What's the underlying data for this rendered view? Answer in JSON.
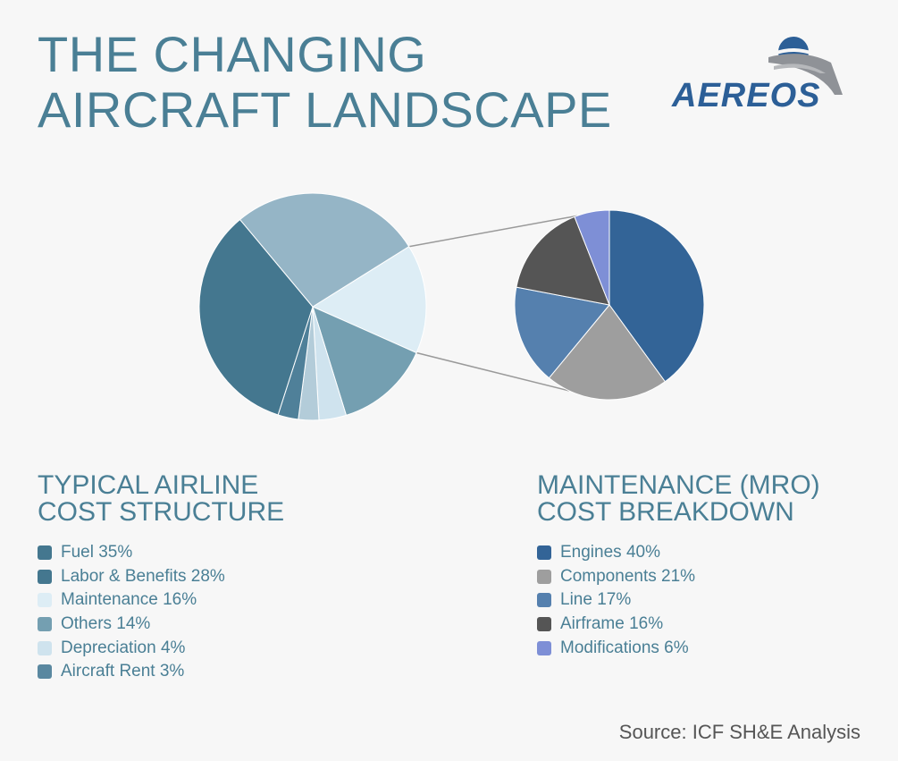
{
  "title": {
    "line1": "THE CHANGING",
    "line2": "AIRCRAFT LANDSCAPE"
  },
  "logo": {
    "text": "AEREOS"
  },
  "left_section": {
    "title_line1": "TYPICAL AIRLINE",
    "title_line2": "COST STRUCTURE"
  },
  "right_section": {
    "title_line1": "MAINTENANCE (MRO)",
    "title_line2": "COST BREAKDOWN"
  },
  "source": "Source: ICF SH&E Analysis",
  "chart_data": [
    {
      "type": "pie",
      "title": "TYPICAL AIRLINE COST STRUCTURE",
      "slices": [
        {
          "label": "Fuel 35%",
          "value": 35,
          "color": "#44778f"
        },
        {
          "label": "Labor & Benefits 28%",
          "value": 28,
          "color": "#95b5c6"
        },
        {
          "label": "Maintenance 16%",
          "value": 16,
          "color": "#ddedf5"
        },
        {
          "label": "Others 14%",
          "value": 14,
          "color": "#749fb1"
        },
        {
          "label": "Depreciation 4%",
          "value": 4,
          "color": "#cfe3ee"
        },
        {
          "label": "Aircraft Rent 3%",
          "value": 3,
          "color": "#4f8099"
        }
      ],
      "legend_colors": [
        "#44778f",
        "#44778f",
        "#ddedf5",
        "#749fb1",
        "#cfe3ee",
        "#5a88a0"
      ],
      "extra_slice": {
        "value": 3,
        "color": "#b3ccd9"
      }
    },
    {
      "type": "pie",
      "title": "MAINTENANCE (MRO) COST BREAKDOWN",
      "slices": [
        {
          "label": "Engines 40%",
          "value": 40,
          "color": "#336497"
        },
        {
          "label": "Components 21%",
          "value": 21,
          "color": "#9e9e9e"
        },
        {
          "label": "Line 17%",
          "value": 17,
          "color": "#5580ae"
        },
        {
          "label": "Airframe 16%",
          "value": 16,
          "color": "#555555"
        },
        {
          "label": "Modifications 6%",
          "value": 6,
          "color": "#7e8fd6"
        }
      ]
    }
  ]
}
